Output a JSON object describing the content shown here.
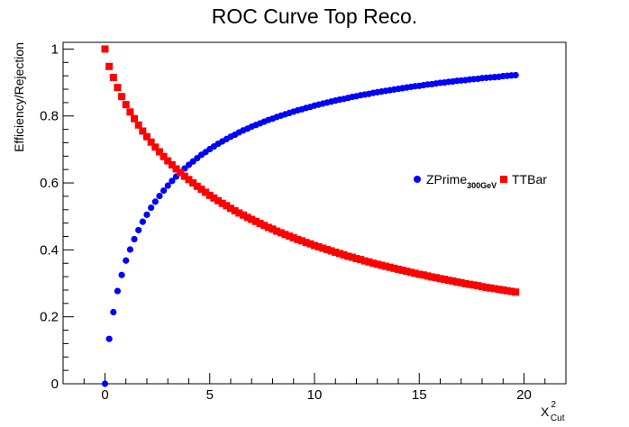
{
  "chart_data": {
    "type": "scatter",
    "title": "ROC Curve Top Reco.",
    "ylabel": "Efficiency/Rejection",
    "xlabel": {
      "main": "X",
      "sup": "2",
      "sub": "Cut"
    },
    "xlim": [
      -2,
      22
    ],
    "ylim": [
      0,
      1.02
    ],
    "x_ticks": [
      0,
      5,
      10,
      15,
      20
    ],
    "y_ticks": [
      0,
      0.2,
      0.4,
      0.6,
      0.8,
      1
    ],
    "legend_position": "right-middle",
    "series": [
      {
        "name": "ZPrime",
        "name_sub": "300GeV",
        "color": "#0000ff",
        "marker": "circle",
        "x_start": 0,
        "x_step": 0.2,
        "count": 99,
        "values": [
          0.0,
          0.134,
          0.214,
          0.277,
          0.325,
          0.368,
          0.401,
          0.432,
          0.459,
          0.484,
          0.505,
          0.526,
          0.544,
          0.561,
          0.577,
          0.592,
          0.606,
          0.619,
          0.631,
          0.643,
          0.654,
          0.664,
          0.674,
          0.684,
          0.692,
          0.701,
          0.709,
          0.717,
          0.724,
          0.731,
          0.738,
          0.744,
          0.751,
          0.757,
          0.762,
          0.768,
          0.773,
          0.778,
          0.783,
          0.788,
          0.792,
          0.797,
          0.801,
          0.805,
          0.809,
          0.813,
          0.817,
          0.82,
          0.824,
          0.827,
          0.831,
          0.834,
          0.837,
          0.84,
          0.843,
          0.846,
          0.849,
          0.851,
          0.854,
          0.857,
          0.859,
          0.862,
          0.864,
          0.866,
          0.869,
          0.871,
          0.873,
          0.875,
          0.877,
          0.879,
          0.881,
          0.883,
          0.885,
          0.887,
          0.889,
          0.89,
          0.892,
          0.894,
          0.895,
          0.897,
          0.899,
          0.9,
          0.902,
          0.903,
          0.905,
          0.906,
          0.907,
          0.909,
          0.91,
          0.911,
          0.913,
          0.914,
          0.915,
          0.916,
          0.917,
          0.919,
          0.92,
          0.921,
          0.922
        ]
      },
      {
        "name": "TTBar",
        "color": "#ff0000",
        "marker": "square",
        "x_start": 0,
        "x_step": 0.2,
        "count": 99,
        "values": [
          1.0,
          0.948,
          0.915,
          0.885,
          0.858,
          0.834,
          0.812,
          0.792,
          0.773,
          0.755,
          0.738,
          0.722,
          0.707,
          0.693,
          0.679,
          0.666,
          0.654,
          0.642,
          0.631,
          0.62,
          0.61,
          0.6,
          0.59,
          0.581,
          0.572,
          0.563,
          0.555,
          0.547,
          0.539,
          0.532,
          0.524,
          0.517,
          0.51,
          0.504,
          0.497,
          0.491,
          0.485,
          0.479,
          0.473,
          0.467,
          0.462,
          0.456,
          0.451,
          0.446,
          0.441,
          0.436,
          0.431,
          0.427,
          0.422,
          0.418,
          0.413,
          0.409,
          0.405,
          0.401,
          0.397,
          0.393,
          0.389,
          0.385,
          0.381,
          0.378,
          0.374,
          0.371,
          0.367,
          0.364,
          0.36,
          0.357,
          0.354,
          0.351,
          0.348,
          0.345,
          0.342,
          0.339,
          0.336,
          0.333,
          0.33,
          0.327,
          0.325,
          0.322,
          0.319,
          0.317,
          0.314,
          0.312,
          0.309,
          0.307,
          0.304,
          0.302,
          0.299,
          0.297,
          0.295,
          0.293,
          0.29,
          0.288,
          0.286,
          0.284,
          0.282,
          0.28,
          0.278,
          0.276,
          0.274
        ]
      }
    ]
  }
}
